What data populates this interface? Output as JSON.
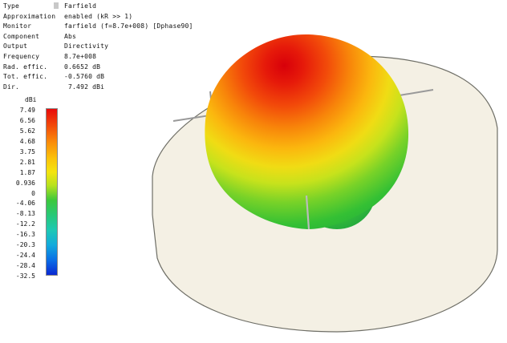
{
  "info": [
    {
      "key": "Type",
      "value": "Farfield"
    },
    {
      "key": "Approximation",
      "value": "enabled (kR >> 1)"
    },
    {
      "key": "Monitor",
      "value": "farfield (f=8.7e+008) [Dphase90]"
    },
    {
      "key": "Component",
      "value": "Abs"
    },
    {
      "key": "Output",
      "value": "Directivity"
    },
    {
      "key": "Frequency",
      "value": "8.7e+008"
    },
    {
      "key": "Rad. effic.",
      "value": "0.6652 dB"
    },
    {
      "key": "Tot. effic.",
      "value": "-0.5760 dB"
    },
    {
      "key": "Dir.",
      "value": " 7.492 dBi"
    }
  ],
  "legend": {
    "unit": "dBi",
    "labels": [
      "7.49",
      "6.56",
      "5.62",
      "4.68",
      "3.75",
      "2.81",
      "1.87",
      "0.936",
      "0",
      "-4.06",
      "-8.13",
      "-12.2",
      "-16.3",
      "-20.3",
      "-24.4",
      "-28.4",
      "-32.5"
    ]
  },
  "colors": {
    "plate": "#f4f0e4",
    "plate_edge": "#6e6e66",
    "max": "#e8120c",
    "min": "#0a28d2"
  }
}
